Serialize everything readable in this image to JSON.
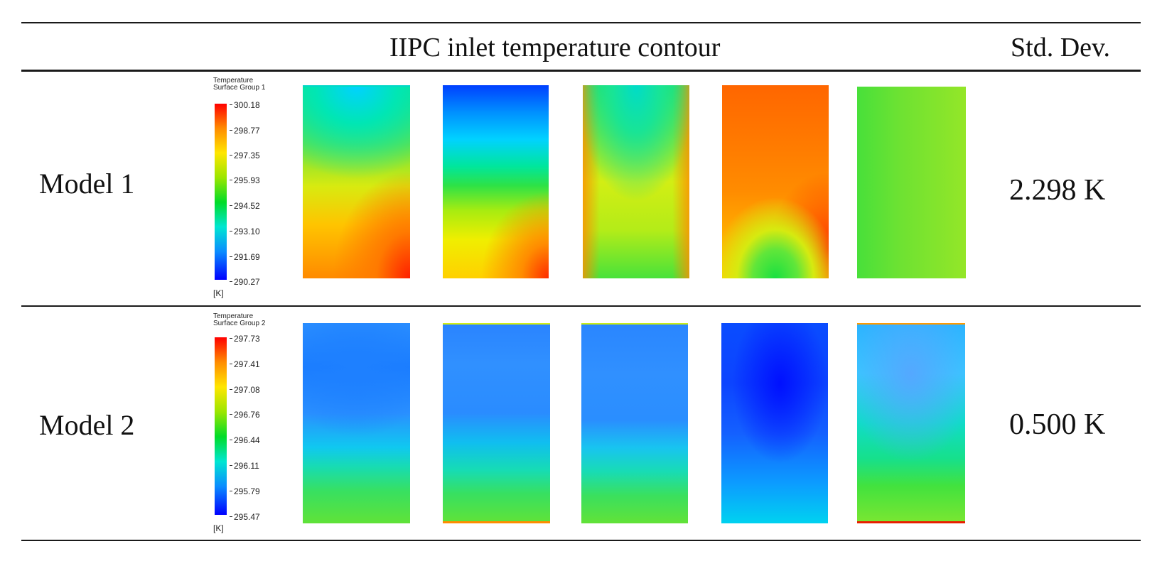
{
  "table": {
    "header": {
      "title": "IIPC inlet temperature contour",
      "std_dev_header": "Std. Dev."
    },
    "rows": [
      {
        "model": "Model 1",
        "std_dev": "2.298 K",
        "legend": {
          "title_line1": "Temperature",
          "title_line2": "Surface Group 1",
          "ticks": [
            "300.18",
            "298.77",
            "297.35",
            "295.93",
            "294.52",
            "293.10",
            "291.69",
            "290.27"
          ],
          "unit": "[K]"
        },
        "contour_count": 5
      },
      {
        "model": "Model 2",
        "std_dev": "0.500 K",
        "legend": {
          "title_line1": "Temperature",
          "title_line2": "Surface Group 2",
          "ticks": [
            "297.73",
            "297.41",
            "297.08",
            "296.76",
            "296.44",
            "296.11",
            "295.79",
            "295.47"
          ],
          "unit": "[K]"
        },
        "contour_count": 5
      }
    ]
  },
  "colors": {
    "colormap": [
      "#0000ff",
      "#0a8cff",
      "#00e6d2",
      "#00dc28",
      "#9be600",
      "#ffe600",
      "#ff8c00",
      "#ff0000"
    ],
    "rule": "#1a1a1a"
  }
}
